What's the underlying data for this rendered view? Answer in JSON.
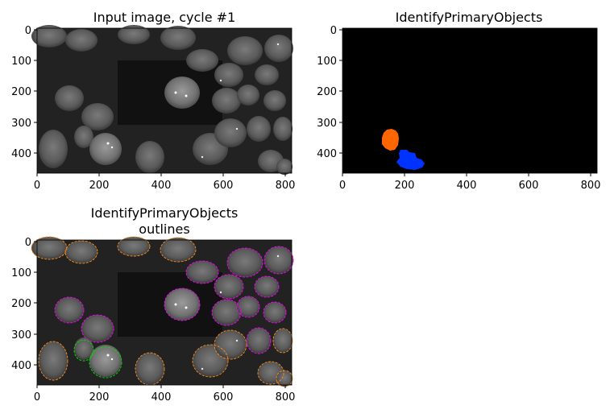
{
  "figure": {
    "panels": [
      {
        "title": "Input image, cycle #1",
        "x_ticks": [
          "0",
          "200",
          "400",
          "600",
          "800"
        ],
        "y_ticks": [
          "0",
          "100",
          "200",
          "300",
          "400"
        ]
      },
      {
        "title": "IdentifyPrimaryObjects",
        "x_ticks": [
          "0",
          "200",
          "400",
          "600",
          "800"
        ],
        "y_ticks": [
          "0",
          "100",
          "200",
          "300",
          "400"
        ]
      },
      {
        "title_line1": "IdentifyPrimaryObjects",
        "title_line2": "outlines",
        "x_ticks": [
          "0",
          "200",
          "400",
          "600",
          "800"
        ],
        "y_ticks": [
          "0",
          "100",
          "200",
          "300",
          "400"
        ]
      }
    ]
  },
  "colors": {
    "object_1": "#ff6600",
    "object_2": "#0033ff",
    "outline_selected": "#00e000",
    "outline_primary": "#ff00ff",
    "outline_border": "#ff8c1a"
  }
}
